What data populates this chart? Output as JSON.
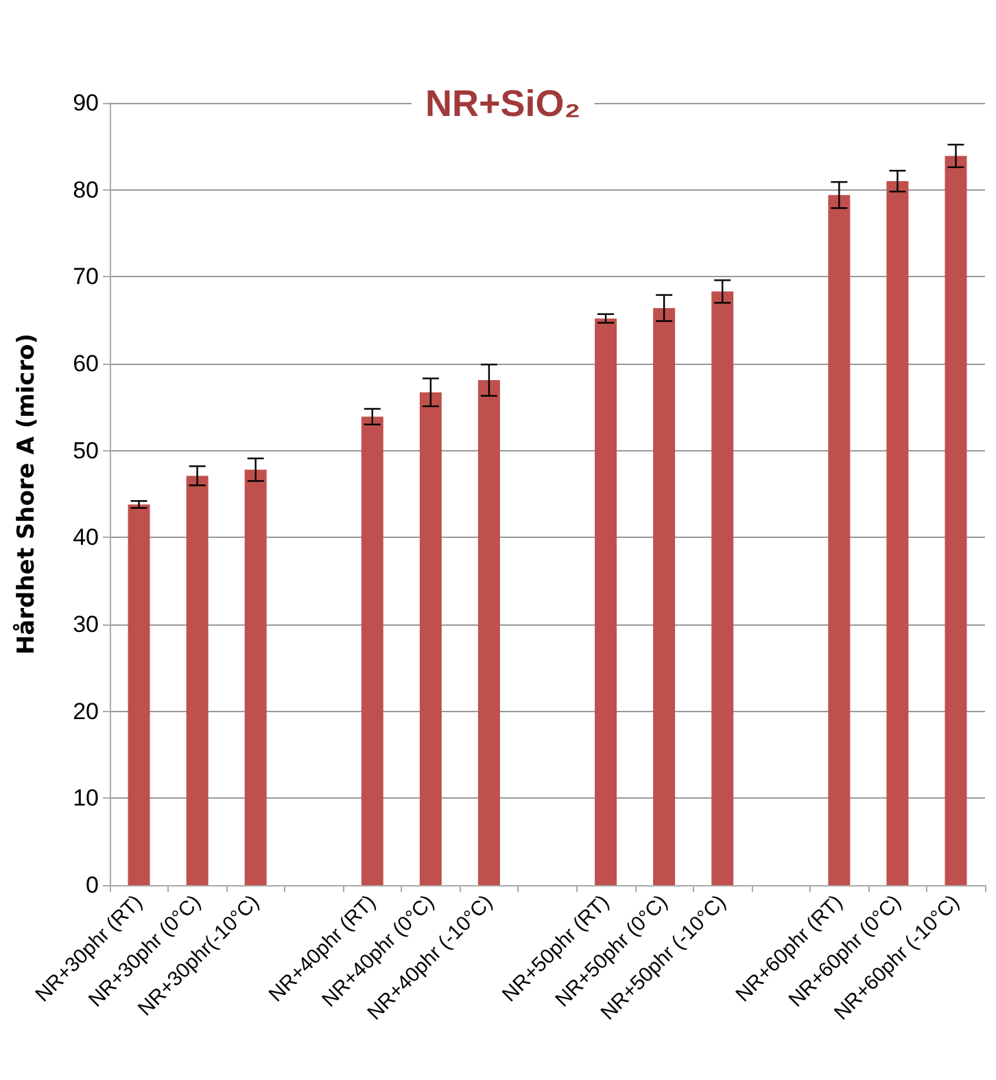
{
  "chart_data": {
    "type": "bar",
    "title": "NR+SiO₂",
    "ylabel": "Hårdhet Shore A (micro)",
    "categories": [
      "NR+30phr (RT)",
      "NR+30phr (0°C)",
      "NR+30phr(-10°C)",
      null,
      "NR+40phr (RT)",
      "NR+40phr (0°C)",
      "NR+40phr (-10°C)",
      null,
      "NR+50phr (RT)",
      "NR+50phr (0°C)",
      "NR+50phr (-10°C)",
      null,
      "NR+60phr (RT)",
      "NR+60phr (0°C)",
      "NR+60phr (-10°C)"
    ],
    "values": [
      43.8,
      47.1,
      47.8,
      null,
      53.9,
      56.7,
      58.1,
      null,
      65.2,
      66.4,
      68.3,
      null,
      79.4,
      81.0,
      83.9
    ],
    "errors": [
      0.4,
      1.1,
      1.3,
      null,
      0.9,
      1.6,
      1.8,
      null,
      0.5,
      1.5,
      1.3,
      null,
      1.5,
      1.2,
      1.3
    ],
    "color": "#c0504d",
    "ylim": [
      0,
      90
    ],
    "yticks": [
      0,
      10,
      20,
      30,
      40,
      50,
      60,
      70,
      80,
      90
    ],
    "grid": "y"
  }
}
